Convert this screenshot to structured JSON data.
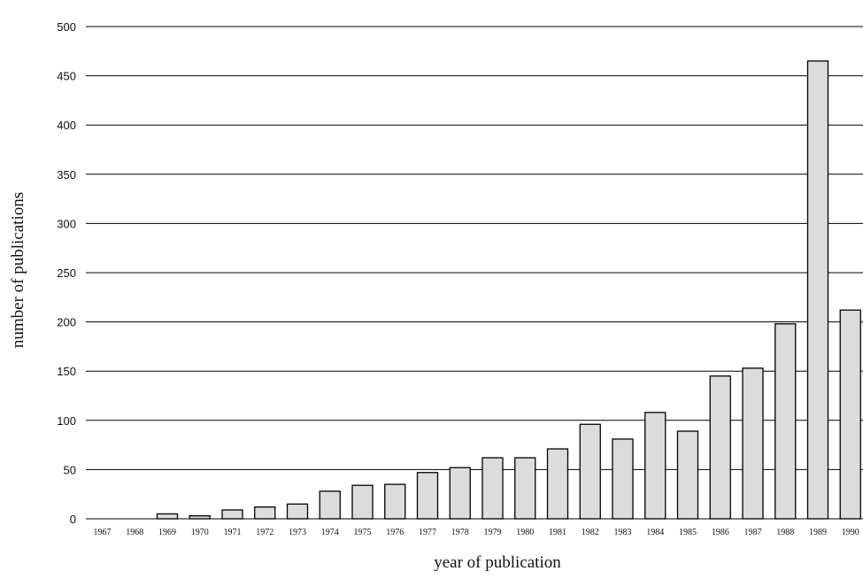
{
  "chart_data": {
    "type": "bar",
    "categories": [
      "1967",
      "1968",
      "1969",
      "1970",
      "1971",
      "1972",
      "1973",
      "1974",
      "1975",
      "1976",
      "1977",
      "1978",
      "1979",
      "1980",
      "1981",
      "1982",
      "1983",
      "1984",
      "1985",
      "1986",
      "1987",
      "1988",
      "1989",
      "1990"
    ],
    "values": [
      0,
      0,
      5,
      3,
      9,
      12,
      15,
      28,
      34,
      35,
      47,
      52,
      62,
      62,
      71,
      96,
      81,
      108,
      89,
      145,
      153,
      198,
      465,
      212
    ],
    "xlabel": "year of publication",
    "ylabel": "number of publications",
    "ylim": [
      0,
      520
    ],
    "yticks": [
      0,
      50,
      100,
      150,
      200,
      250,
      300,
      350,
      400,
      450,
      500
    ],
    "grid": true,
    "bar_color": "#dcdcdc",
    "line_color": "#000000"
  }
}
